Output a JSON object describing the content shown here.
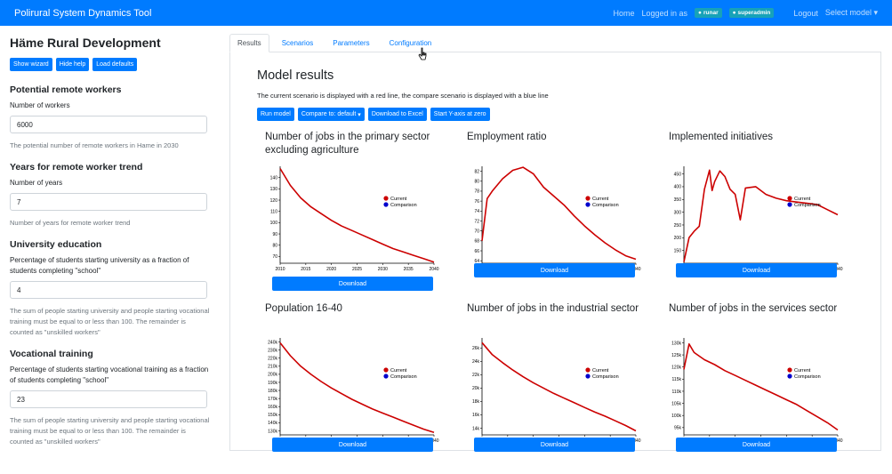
{
  "navbar": {
    "brand": "Polirural System Dynamics Tool",
    "home": "Home",
    "logged_in": "Logged in as",
    "user_badge": "runar",
    "role_badge": "superadmin",
    "logout": "Logout",
    "select_model": "Select model"
  },
  "sidebar": {
    "title": "Häme Rural Development",
    "buttons": [
      "Show wizard",
      "Hide help",
      "Load defaults"
    ],
    "sections": [
      {
        "title": "Potential remote workers",
        "label": "Number of workers",
        "value": "6000",
        "help": "The potential number of remote workers in Hame in 2030"
      },
      {
        "title": "Years for remote worker trend",
        "label": "Number of years",
        "value": "7",
        "help": "Number of years for remote worker trend"
      },
      {
        "title": "University education",
        "label": "Percentage of students starting university as a fraction of students completing \"school\"",
        "value": "4",
        "help": "The sum of people starting university and people starting vocational training must be equal to or less than 100. The remainder is counted as \"unskilled workers\""
      },
      {
        "title": "Vocational training",
        "label": "Percentage of students starting vocational training as a fraction of students completing \"school\"",
        "value": "23",
        "help": "The sum of people starting university and people starting vocational training must be equal to or less than 100. The remainder is counted as \"unskilled workers\""
      }
    ]
  },
  "tabs": [
    "Results",
    "Scenarios",
    "Parameters",
    "Configuration"
  ],
  "results": {
    "title": "Model results",
    "description": "The current scenario is displayed with a red line, the compare scenario is displayed with a blue line",
    "actions": [
      "Run model",
      "Compare to: default",
      "Download to Excel",
      "Start Y-axis at zero"
    ],
    "download_label": "Download",
    "legend_current": "Current",
    "legend_comparison": "Comparison"
  },
  "colors": {
    "primary": "#007bff",
    "current": "#cc0000",
    "comparison": "#0000cc",
    "badge": "#17a2b8"
  },
  "chart_data": [
    {
      "type": "line",
      "title": "Number of jobs in the primary sector excluding agriculture",
      "x": [
        2010,
        2012,
        2014,
        2016,
        2018,
        2020,
        2022,
        2024,
        2026,
        2028,
        2030,
        2032,
        2034,
        2036,
        2038,
        2040
      ],
      "xticks": [
        2010,
        2015,
        2020,
        2025,
        2030,
        2035,
        2040
      ],
      "yticks": [
        70,
        80,
        90,
        100,
        110,
        120,
        130,
        140
      ],
      "ylim": [
        64,
        150
      ],
      "series": [
        {
          "name": "Current",
          "values": [
            148,
            133,
            122,
            114,
            108,
            102,
            97,
            93,
            89,
            85,
            81,
            77,
            74,
            71,
            68,
            65
          ]
        }
      ]
    },
    {
      "type": "line",
      "title": "Employment ratio",
      "x": [
        2010,
        2011,
        2012,
        2014,
        2016,
        2018,
        2020,
        2022,
        2024,
        2026,
        2028,
        2030,
        2032,
        2034,
        2036,
        2038,
        2040
      ],
      "xticks": [
        2010,
        2015,
        2020,
        2025,
        2030,
        2035,
        2040
      ],
      "yticks": [
        64,
        66,
        68,
        70,
        72,
        74,
        76,
        78,
        80,
        82
      ],
      "ylim": [
        63.5,
        83
      ],
      "series": [
        {
          "name": "Current",
          "values": [
            68,
            76.5,
            78,
            80.5,
            82.2,
            82.8,
            81.5,
            78.8,
            77,
            75.2,
            73,
            71,
            69.2,
            67.6,
            66.2,
            65,
            64.3
          ]
        }
      ]
    },
    {
      "type": "line",
      "title": "Implemented initiatives",
      "x": [
        2010,
        2011,
        2012,
        2013,
        2014,
        2015,
        2015.5,
        2016,
        2017,
        2018,
        2019,
        2020,
        2021,
        2022,
        2024,
        2026,
        2028,
        2030,
        2032,
        2034,
        2036,
        2038,
        2040
      ],
      "xticks": [
        2010,
        2015,
        2020,
        2025,
        2030,
        2035,
        2040
      ],
      "yticks": [
        150,
        200,
        250,
        300,
        350,
        400,
        450
      ],
      "ylim": [
        100,
        480
      ],
      "series": [
        {
          "name": "Current",
          "values": [
            105,
            200,
            225,
            245,
            390,
            465,
            385,
            420,
            462,
            440,
            390,
            370,
            270,
            395,
            400,
            370,
            355,
            345,
            340,
            335,
            330,
            310,
            290
          ]
        }
      ]
    },
    {
      "type": "line",
      "title": "Population 16-40",
      "x": [
        2010,
        2012,
        2014,
        2016,
        2018,
        2020,
        2022,
        2024,
        2026,
        2028,
        2030,
        2032,
        2034,
        2036,
        2038,
        2040
      ],
      "xticks": [
        2010,
        2015,
        2020,
        2025,
        2030,
        2035,
        2040
      ],
      "yticks": [
        "130k",
        "140k",
        "150k",
        "160k",
        "170k",
        "180k",
        "190k",
        "200k",
        "210k",
        "220k",
        "230k",
        "240k"
      ],
      "ylim": [
        125,
        245
      ],
      "series": [
        {
          "name": "Current",
          "values": [
            239,
            223,
            210,
            200,
            191,
            183,
            176,
            169,
            163,
            157,
            152,
            147,
            142,
            137,
            132,
            128
          ]
        }
      ]
    },
    {
      "type": "line",
      "title": "Number of jobs in the industrial sector",
      "x": [
        2010,
        2012,
        2014,
        2016,
        2018,
        2020,
        2022,
        2024,
        2026,
        2028,
        2030,
        2032,
        2034,
        2036,
        2038,
        2040
      ],
      "xticks": [
        2010,
        2015,
        2020,
        2025,
        2030,
        2035,
        2040
      ],
      "yticks": [
        "14k",
        "16k",
        "18k",
        "20k",
        "22k",
        "24k",
        "26k"
      ],
      "ylim": [
        13,
        27.5
      ],
      "series": [
        {
          "name": "Current",
          "values": [
            26.8,
            25,
            23.8,
            22.7,
            21.7,
            20.8,
            20,
            19.2,
            18.5,
            17.8,
            17.1,
            16.4,
            15.8,
            15.1,
            14.4,
            13.6
          ]
        }
      ]
    },
    {
      "type": "line",
      "title": "Number of jobs in the services sector",
      "x": [
        2010,
        2011,
        2012,
        2014,
        2016,
        2018,
        2020,
        2022,
        2024,
        2026,
        2028,
        2030,
        2032,
        2034,
        2036,
        2038,
        2040
      ],
      "xticks": [
        2010,
        2015,
        2020,
        2025,
        2030,
        2035,
        2040
      ],
      "yticks": [
        "95k",
        "100k",
        "105k",
        "110k",
        "115k",
        "120k",
        "125k",
        "130k"
      ],
      "ylim": [
        92,
        132
      ],
      "series": [
        {
          "name": "Current",
          "values": [
            119,
            129.5,
            126,
            123,
            121,
            118.5,
            116.5,
            114.5,
            112.5,
            110.5,
            108.5,
            106.5,
            104.5,
            102,
            99.5,
            97,
            94
          ]
        }
      ]
    }
  ]
}
